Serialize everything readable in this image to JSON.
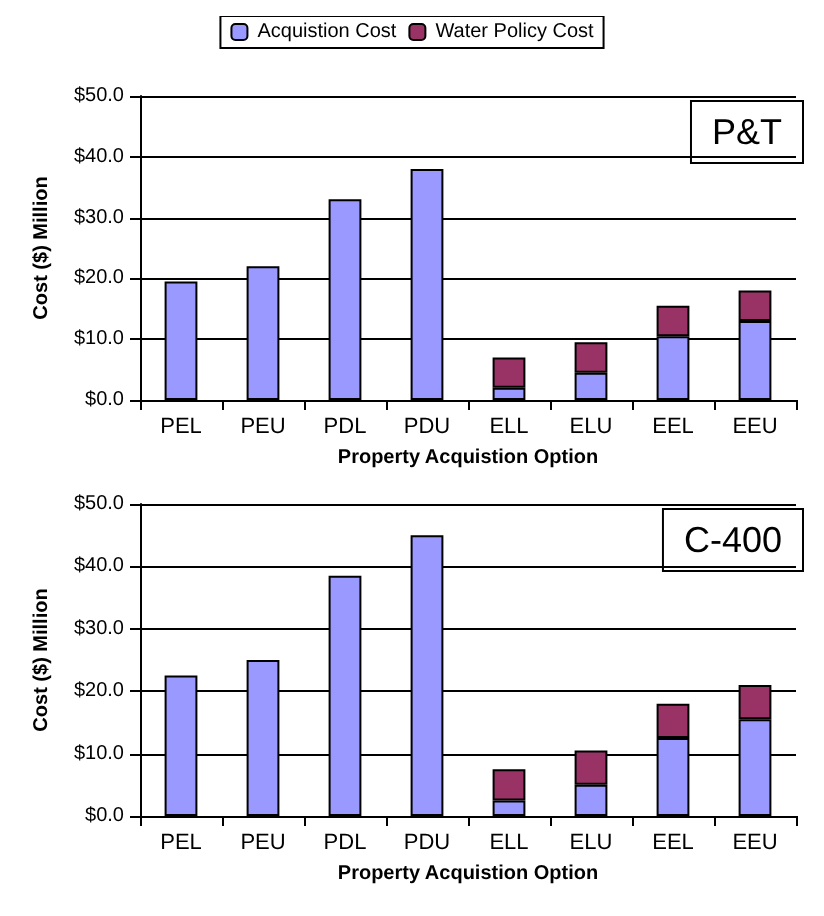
{
  "chart_data": [
    {
      "type": "bar",
      "stacked": true,
      "legend": "top",
      "grid": "y",
      "xlabel": "Property Acquistion Option",
      "ylabel": "Cost ($) Million",
      "annotations": [
        "P&T"
      ],
      "categories": [
        "PEL",
        "PEU",
        "PDL",
        "PDU",
        "ELL",
        "ELU",
        "EEL",
        "EEU"
      ],
      "series": [
        {
          "name": "Acquistion Cost",
          "color": "#9999ff",
          "values": [
            19.5,
            22,
            33,
            38,
            2,
            4.5,
            10.5,
            13
          ]
        },
        {
          "name": "Water Policy Cost",
          "color": "#993366",
          "values": [
            null,
            null,
            null,
            null,
            5,
            5,
            5,
            5
          ]
        }
      ],
      "ylim": [
        0,
        50
      ],
      "yticks": [
        {
          "value": 0,
          "label": "$0.0"
        },
        {
          "value": 10,
          "label": "$10.0"
        },
        {
          "value": 20,
          "label": "$20.0"
        },
        {
          "value": 30,
          "label": "$30.0"
        },
        {
          "value": 40,
          "label": "$40.0"
        },
        {
          "value": 50,
          "label": "$50.0"
        }
      ]
    },
    {
      "type": "bar",
      "stacked": true,
      "grid": "y",
      "xlabel": "Property Acquistion Option",
      "ylabel": "Cost ($) Million",
      "annotations": [
        "C-400"
      ],
      "categories": [
        "PEL",
        "PEU",
        "PDL",
        "PDU",
        "ELL",
        "ELU",
        "EEL",
        "EEU"
      ],
      "series": [
        {
          "color": "#9999ff",
          "values": [
            22.5,
            25,
            38.5,
            45,
            2.5,
            5,
            12.5,
            15.5
          ]
        },
        {
          "color": "#993366",
          "values": [
            null,
            null,
            null,
            null,
            5,
            5.5,
            5.5,
            5.5
          ]
        }
      ],
      "ylim": [
        0,
        50
      ],
      "yticks": [
        {
          "value": 0,
          "label": "$0.0"
        },
        {
          "value": 10,
          "label": "$10.0"
        },
        {
          "value": 20,
          "label": "$20.0"
        },
        {
          "value": 30,
          "label": "$30.0"
        },
        {
          "value": 40,
          "label": "$40.0"
        },
        {
          "value": 50,
          "label": "$50.0"
        }
      ]
    }
  ]
}
